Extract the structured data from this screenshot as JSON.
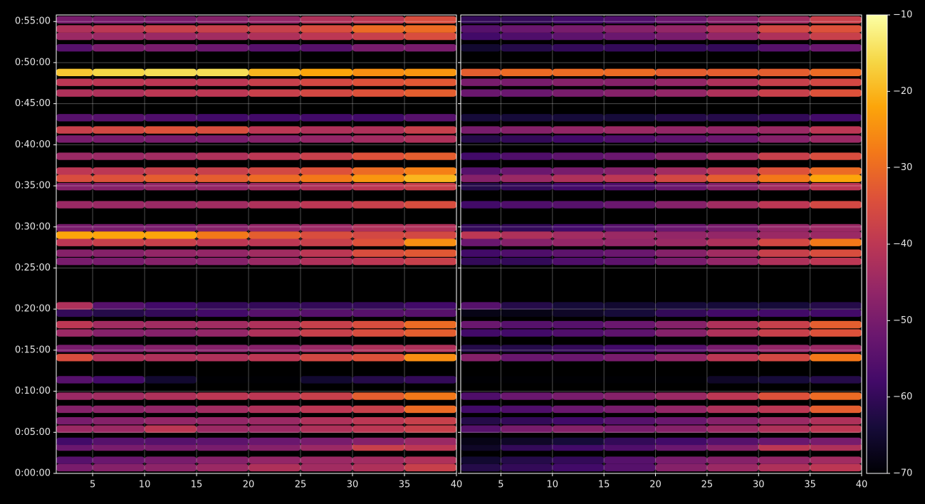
{
  "chart_data": [
    {
      "type": "heatmap",
      "x_edges": [
        1.5,
        5,
        10,
        15,
        20,
        25,
        30,
        35,
        40
      ],
      "y": [
        0.7,
        1.6,
        3.2,
        3.9,
        5.4,
        6.4,
        7.8,
        9.4,
        11.4,
        14.1,
        15.2,
        17.1,
        18.1,
        19.5,
        20.4,
        25.8,
        26.8,
        28.1,
        29.0,
        29.9,
        32.7,
        34.9,
        35.9,
        36.8,
        38.6,
        40.7,
        41.8,
        43.3,
        46.3,
        47.6,
        48.8,
        51.8,
        53.2,
        54.1,
        55.2
      ],
      "z": [
        [
          -50,
          -48,
          -47,
          -45,
          -42,
          -44,
          -42,
          -38
        ],
        [
          -55,
          -52,
          -50,
          -48,
          -46,
          -45,
          -44,
          -42
        ],
        [
          -52,
          -50,
          -50,
          -50,
          -48,
          -45,
          -38,
          -40
        ],
        [
          -58,
          -55,
          -55,
          -54,
          -52,
          -50,
          -48,
          -45
        ],
        [
          -45,
          -45,
          -40,
          -45,
          -45,
          -42,
          -40,
          -38
        ],
        [
          -50,
          -48,
          -46,
          -46,
          -45,
          -42,
          -40,
          -38
        ],
        [
          -48,
          -47,
          -46,
          -44,
          -42,
          -40,
          -38,
          -30
        ],
        [
          -45,
          -44,
          -42,
          -40,
          -40,
          -38,
          -32,
          -28
        ],
        [
          -55,
          -58,
          -65,
          -70,
          -70,
          -65,
          -62,
          -60
        ],
        [
          -35,
          -42,
          -42,
          -42,
          -40,
          -36,
          -34,
          -25
        ],
        [
          -50,
          -50,
          -48,
          -48,
          -48,
          -45,
          -42,
          -42
        ],
        [
          -45,
          -48,
          -48,
          -46,
          -42,
          -38,
          -35,
          -32
        ],
        [
          -40,
          -44,
          -44,
          -44,
          -42,
          -38,
          -35,
          -30
        ],
        [
          -60,
          -62,
          -60,
          -58,
          -55,
          -55,
          -55,
          -55
        ],
        [
          -42,
          -55,
          -58,
          -60,
          -60,
          -60,
          -60,
          -58
        ],
        [
          -50,
          -50,
          -48,
          -48,
          -45,
          -42,
          -40,
          -38
        ],
        [
          -48,
          -48,
          -46,
          -46,
          -44,
          -40,
          -35,
          -33
        ],
        [
          -40,
          -38,
          -38,
          -40,
          -40,
          -38,
          -34,
          -25
        ],
        [
          -22,
          -22,
          -22,
          -28,
          -32,
          -35,
          -36,
          -36
        ],
        [
          -50,
          -50,
          -50,
          -48,
          -46,
          -45,
          -42,
          -42
        ],
        [
          -45,
          -45,
          -45,
          -44,
          -42,
          -40,
          -38,
          -35
        ],
        [
          -48,
          -48,
          -46,
          -46,
          -44,
          -42,
          -40,
          -38
        ],
        [
          -35,
          -34,
          -32,
          -32,
          -30,
          -28,
          -24,
          -20
        ],
        [
          -40,
          -40,
          -38,
          -38,
          -36,
          -34,
          -30,
          -27
        ],
        [
          -45,
          -45,
          -44,
          -42,
          -40,
          -38,
          -34,
          -32
        ],
        [
          -50,
          -50,
          -50,
          -50,
          -48,
          -46,
          -44,
          -42
        ],
        [
          -38,
          -36,
          -34,
          -35,
          -40,
          -42,
          -42,
          -38
        ],
        [
          -55,
          -55,
          -56,
          -58,
          -58,
          -58,
          -58,
          -55
        ],
        [
          -42,
          -42,
          -40,
          -40,
          -38,
          -36,
          -34,
          -32
        ],
        [
          -40,
          -40,
          -40,
          -40,
          -38,
          -36,
          -34,
          -33
        ],
        [
          -18,
          -16,
          -15,
          -15,
          -20,
          -22,
          -25,
          -24
        ],
        [
          -55,
          -50,
          -50,
          -52,
          -55,
          -55,
          -50,
          -50
        ],
        [
          -45,
          -45,
          -45,
          -44,
          -42,
          -40,
          -38,
          -35
        ],
        [
          -42,
          -40,
          -38,
          -38,
          -38,
          -35,
          -30,
          -30
        ],
        [
          -50,
          -50,
          -50,
          -48,
          -46,
          -42,
          -40,
          -35
        ]
      ],
      "xlim": [
        1.5,
        40
      ],
      "ylim": [
        0,
        55.8
      ],
      "xticks": [
        5,
        10,
        15,
        20,
        25,
        30,
        35,
        40
      ],
      "yticks": [
        {
          "value": 0,
          "label": "0:00:00"
        },
        {
          "value": 5,
          "label": "0:05:00"
        },
        {
          "value": 10,
          "label": "0:10:00"
        },
        {
          "value": 15,
          "label": "0:15:00"
        },
        {
          "value": 20,
          "label": "0:20:00"
        },
        {
          "value": 25,
          "label": "0:25:00"
        },
        {
          "value": 30,
          "label": "0:30:00"
        },
        {
          "value": 35,
          "label": "0:35:00"
        },
        {
          "value": 40,
          "label": "0:40:00"
        },
        {
          "value": 45,
          "label": "0:45:00"
        },
        {
          "value": 50,
          "label": "0:50:00"
        },
        {
          "value": 55,
          "label": "0:55:00"
        }
      ],
      "grid": true
    },
    {
      "type": "heatmap",
      "x_edges": [
        1.1,
        5,
        10,
        15,
        20,
        25,
        30,
        35,
        40
      ],
      "y": [
        0.7,
        1.6,
        3.2,
        3.9,
        5.4,
        6.4,
        7.8,
        9.4,
        11.4,
        14.1,
        15.2,
        17.1,
        18.1,
        19.5,
        20.4,
        25.8,
        26.8,
        28.1,
        29.0,
        29.9,
        32.7,
        34.9,
        35.9,
        36.8,
        38.6,
        40.7,
        41.8,
        43.3,
        46.3,
        47.6,
        48.8,
        51.8,
        53.2,
        54.1,
        55.2
      ],
      "z": [
        [
          -62,
          -60,
          -58,
          -55,
          -48,
          -45,
          -42,
          -40
        ],
        [
          -65,
          -62,
          -60,
          -55,
          -50,
          -48,
          -46,
          -44
        ],
        [
          -66,
          -60,
          -58,
          -56,
          -52,
          -48,
          -40,
          -42
        ],
        [
          -68,
          -66,
          -64,
          -60,
          -58,
          -55,
          -52,
          -50
        ],
        [
          -55,
          -50,
          -48,
          -50,
          -48,
          -45,
          -42,
          -40
        ],
        [
          -62,
          -60,
          -58,
          -55,
          -52,
          -48,
          -45,
          -42
        ],
        [
          -58,
          -56,
          -52,
          -50,
          -46,
          -42,
          -40,
          -32
        ],
        [
          -56,
          -52,
          -50,
          -48,
          -45,
          -40,
          -34,
          -30
        ],
        [
          -70,
          -70,
          -70,
          -70,
          -70,
          -66,
          -64,
          -62
        ],
        [
          -48,
          -52,
          -52,
          -50,
          -46,
          -40,
          -36,
          -28
        ],
        [
          -62,
          -62,
          -60,
          -58,
          -55,
          -50,
          -46,
          -45
        ],
        [
          -58,
          -58,
          -56,
          -54,
          -48,
          -42,
          -38,
          -34
        ],
        [
          -52,
          -55,
          -55,
          -52,
          -48,
          -42,
          -38,
          -32
        ],
        [
          -68,
          -68,
          -66,
          -64,
          -60,
          -58,
          -58,
          -58
        ],
        [
          -55,
          -62,
          -64,
          -65,
          -64,
          -64,
          -64,
          -62
        ],
        [
          -60,
          -60,
          -56,
          -54,
          -50,
          -46,
          -42,
          -40
        ],
        [
          -58,
          -56,
          -54,
          -52,
          -48,
          -44,
          -38,
          -35
        ],
        [
          -52,
          -48,
          -46,
          -46,
          -45,
          -42,
          -36,
          -28
        ],
        [
          -40,
          -42,
          -44,
          -45,
          -46,
          -46,
          -45,
          -45
        ],
        [
          -60,
          -60,
          -58,
          -55,
          -52,
          -50,
          -46,
          -45
        ],
        [
          -58,
          -56,
          -55,
          -52,
          -48,
          -44,
          -40,
          -36
        ],
        [
          -62,
          -60,
          -58,
          -56,
          -52,
          -48,
          -44,
          -40
        ],
        [
          -48,
          -45,
          -42,
          -40,
          -36,
          -32,
          -28,
          -22
        ],
        [
          -55,
          -52,
          -50,
          -48,
          -44,
          -40,
          -34,
          -30
        ],
        [
          -58,
          -56,
          -54,
          -52,
          -48,
          -44,
          -38,
          -35
        ],
        [
          -62,
          -60,
          -58,
          -56,
          -54,
          -52,
          -48,
          -45
        ],
        [
          -50,
          -48,
          -46,
          -45,
          -46,
          -46,
          -45,
          -40
        ],
        [
          -64,
          -64,
          -64,
          -64,
          -62,
          -62,
          -60,
          -58
        ],
        [
          -52,
          -52,
          -50,
          -48,
          -46,
          -42,
          -38,
          -34
        ],
        [
          -50,
          -50,
          -48,
          -48,
          -46,
          -42,
          -38,
          -36
        ],
        [
          -32,
          -30,
          -30,
          -30,
          -32,
          -32,
          -32,
          -30
        ],
        [
          -65,
          -62,
          -60,
          -60,
          -60,
          -60,
          -55,
          -52
        ],
        [
          -58,
          -56,
          -54,
          -52,
          -50,
          -46,
          -42,
          -38
        ],
        [
          -55,
          -52,
          -50,
          -48,
          -46,
          -42,
          -36,
          -34
        ],
        [
          -60,
          -60,
          -58,
          -56,
          -52,
          -48,
          -44,
          -38
        ]
      ],
      "xlim": [
        1.1,
        40
      ],
      "ylim": [
        0,
        55.8
      ],
      "xticks": [
        5,
        10,
        15,
        20,
        25,
        30,
        35,
        40
      ],
      "grid": true,
      "colorbar": {
        "lim": [
          -70,
          -10
        ],
        "ticks": [
          {
            "value": -70,
            "label": "−70"
          },
          {
            "value": -60,
            "label": "−60"
          },
          {
            "value": -50,
            "label": "−50"
          },
          {
            "value": -40,
            "label": "−40"
          },
          {
            "value": -30,
            "label": "−30"
          },
          {
            "value": -20,
            "label": "−20"
          },
          {
            "value": -10,
            "label": "−10"
          }
        ],
        "colormap": [
          "#000004",
          "#160b39",
          "#420a68",
          "#6a176e",
          "#932667",
          "#bc3754",
          "#dd513a",
          "#f37819",
          "#fca50a",
          "#f6d746",
          "#fcffa4"
        ]
      }
    }
  ]
}
